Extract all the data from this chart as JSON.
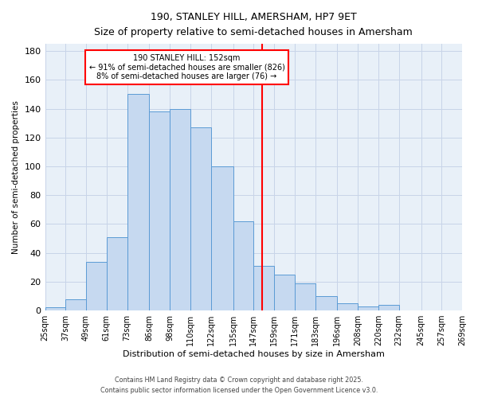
{
  "title": "190, STANLEY HILL, AMERSHAM, HP7 9ET",
  "subtitle": "Size of property relative to semi-detached houses in Amersham",
  "xlabel": "Distribution of semi-detached houses by size in Amersham",
  "ylabel": "Number of semi-detached properties",
  "footer_lines": [
    "Contains HM Land Registry data © Crown copyright and database right 2025.",
    "Contains public sector information licensed under the Open Government Licence v3.0."
  ],
  "bin_labels": [
    "25sqm",
    "37sqm",
    "49sqm",
    "61sqm",
    "73sqm",
    "86sqm",
    "98sqm",
    "110sqm",
    "122sqm",
    "135sqm",
    "147sqm",
    "159sqm",
    "171sqm",
    "183sqm",
    "196sqm",
    "208sqm",
    "220sqm",
    "232sqm",
    "245sqm",
    "257sqm",
    "269sqm"
  ],
  "bar_heights": [
    2,
    8,
    34,
    51,
    150,
    138,
    140,
    127,
    100,
    62,
    31,
    25,
    19,
    10,
    5,
    3,
    4,
    0,
    0,
    0
  ],
  "bin_edges": [
    25,
    37,
    49,
    61,
    73,
    86,
    98,
    110,
    122,
    135,
    147,
    159,
    171,
    183,
    196,
    208,
    220,
    232,
    245,
    257,
    269
  ],
  "bar_color": "#c6d9f0",
  "bar_edge_color": "#5b9bd5",
  "grid_color": "#c8d4e8",
  "bg_color": "#e8f0f8",
  "property_line_x": 152,
  "property_line_color": "red",
  "annotation_title": "190 STANLEY HILL: 152sqm",
  "annotation_line1": "← 91% of semi-detached houses are smaller (826)",
  "annotation_line2": "8% of semi-detached houses are larger (76) →",
  "annotation_box_color": "white",
  "annotation_box_edge": "red",
  "ylim": [
    0,
    185
  ],
  "yticks": [
    0,
    20,
    40,
    60,
    80,
    100,
    120,
    140,
    160,
    180
  ]
}
